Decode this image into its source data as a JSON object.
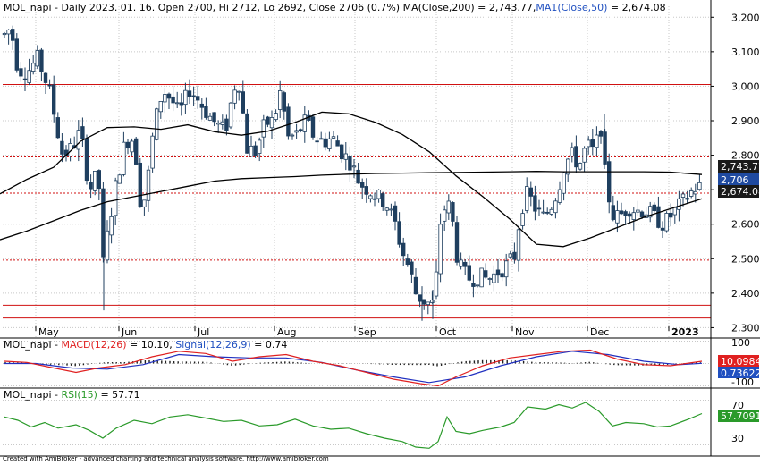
{
  "colors": {
    "candle_body": "#1f3f5f",
    "ma200": "#000000",
    "ma50": "#000000",
    "resistance": "#d01010",
    "macd_line": "#e02020",
    "signal_line": "#2030c0",
    "hist": "#202020",
    "rsi": "#2a9a2a",
    "grid": "#c8c8c8",
    "tag_close": "#1f4aa0",
    "tag_ma": "#1a1a1a",
    "tag_macd": "#e02020",
    "tag_signal": "#2050c0",
    "tag_rsi": "#2a9a2a"
  },
  "chart_data": [
    {
      "type": "candlestick",
      "title": "MOL_napi - Daily 2023. 01. 16. Open 2700, Hi 2712, Lo 2692, Close 2706 (0.7%) MA(Close,200) = 2,743.77, MA1(Close,50) = 2,674.08",
      "title_parts": {
        "a": "MOL_napi - Daily 2023. 01. 16. Open 2700, Hi 2712, Lo 2692, Close 2706 (0.7%) ",
        "b": "MA(Close,200) = 2,743.77,",
        "c": "MA1(Close,50)",
        "d": " = 2,674.08"
      },
      "ylim": [
        2270,
        3250
      ],
      "y_ticks": [
        "3,200",
        "3,100",
        "3,000",
        "2,900",
        "2,800",
        "2,700",
        "2,600",
        "2,500",
        "2,400",
        "2,300"
      ],
      "x_ticks": [
        "May",
        "Jun",
        "Jul",
        "Aug",
        "Sep",
        "Oct",
        "Nov",
        "Dec",
        "2023"
      ],
      "grid": true,
      "horizontal_levels_solid": [
        3005,
        2365,
        2328
      ],
      "horizontal_levels_dotted": [
        2795,
        2690,
        2496
      ],
      "last_values": {
        "ma200": "2,743.77",
        "close": "2,706",
        "ma50": "2,674.08"
      },
      "ma200_path": [
        [
          0,
          2555
        ],
        [
          30,
          2580
        ],
        [
          60,
          2610
        ],
        [
          90,
          2640
        ],
        [
          120,
          2665
        ],
        [
          150,
          2680
        ],
        [
          180,
          2695
        ],
        [
          210,
          2710
        ],
        [
          240,
          2725
        ],
        [
          270,
          2732
        ],
        [
          300,
          2735
        ],
        [
          330,
          2738
        ],
        [
          360,
          2742
        ],
        [
          390,
          2745
        ],
        [
          420,
          2747
        ],
        [
          450,
          2748
        ],
        [
          480,
          2749
        ],
        [
          510,
          2750
        ],
        [
          540,
          2751
        ],
        [
          570,
          2752
        ],
        [
          600,
          2753
        ],
        [
          630,
          2752
        ],
        [
          660,
          2752
        ],
        [
          690,
          2752
        ],
        [
          720,
          2752
        ],
        [
          750,
          2751
        ],
        [
          785,
          2744
        ]
      ],
      "ma50_path": [
        [
          0,
          2688
        ],
        [
          30,
          2730
        ],
        [
          60,
          2765
        ],
        [
          90,
          2840
        ],
        [
          120,
          2880
        ],
        [
          150,
          2882
        ],
        [
          180,
          2875
        ],
        [
          210,
          2888
        ],
        [
          240,
          2868
        ],
        [
          270,
          2858
        ],
        [
          300,
          2870
        ],
        [
          330,
          2895
        ],
        [
          360,
          2925
        ],
        [
          390,
          2920
        ],
        [
          420,
          2895
        ],
        [
          450,
          2860
        ],
        [
          480,
          2810
        ],
        [
          510,
          2740
        ],
        [
          540,
          2680
        ],
        [
          570,
          2615
        ],
        [
          600,
          2542
        ],
        [
          630,
          2535
        ],
        [
          660,
          2560
        ],
        [
          690,
          2590
        ],
        [
          720,
          2620
        ],
        [
          750,
          2645
        ],
        [
          785,
          2674
        ]
      ]
    },
    {
      "type": "line",
      "title": "MOL_napi - MACD(12,26) = 10.10, Signal(12,26,9) = 0.74",
      "title_parts": {
        "a": "MOL_napi - ",
        "b": "MACD(12,26)",
        "c": " = 10.10, ",
        "d": "Signal(12,26,9)",
        "e": " = 0.74"
      },
      "ylim": [
        -110,
        110
      ],
      "y_ticks": [
        "100",
        "-100"
      ],
      "last_values": {
        "macd": "10.0984",
        "signal": "0.736224"
      },
      "macd": [
        [
          5,
          10
        ],
        [
          30,
          5
        ],
        [
          60,
          -20
        ],
        [
          85,
          -40
        ],
        [
          110,
          -20
        ],
        [
          140,
          -5
        ],
        [
          170,
          30
        ],
        [
          200,
          55
        ],
        [
          230,
          45
        ],
        [
          260,
          10
        ],
        [
          290,
          30
        ],
        [
          320,
          40
        ],
        [
          350,
          10
        ],
        [
          380,
          -10
        ],
        [
          410,
          -40
        ],
        [
          440,
          -70
        ],
        [
          470,
          -90
        ],
        [
          490,
          -100
        ],
        [
          510,
          -60
        ],
        [
          540,
          -10
        ],
        [
          570,
          25
        ],
        [
          600,
          40
        ],
        [
          630,
          55
        ],
        [
          660,
          60
        ],
        [
          690,
          20
        ],
        [
          720,
          -5
        ],
        [
          750,
          -10
        ],
        [
          785,
          10
        ]
      ],
      "signal": [
        [
          5,
          0
        ],
        [
          40,
          0
        ],
        [
          80,
          -20
        ],
        [
          120,
          -25
        ],
        [
          160,
          -5
        ],
        [
          200,
          40
        ],
        [
          240,
          30
        ],
        [
          280,
          25
        ],
        [
          320,
          25
        ],
        [
          360,
          5
        ],
        [
          400,
          -30
        ],
        [
          440,
          -60
        ],
        [
          480,
          -85
        ],
        [
          520,
          -60
        ],
        [
          560,
          -10
        ],
        [
          600,
          30
        ],
        [
          640,
          55
        ],
        [
          680,
          40
        ],
        [
          720,
          10
        ],
        [
          760,
          -5
        ],
        [
          785,
          1
        ]
      ]
    },
    {
      "type": "line",
      "title": "MOL_napi - RSI(15) = 57.71",
      "title_parts": {
        "a": "MOL_napi - ",
        "b": "RSI(15)",
        "c": " = 57.71"
      },
      "ylim": [
        20,
        80
      ],
      "y_ticks": [
        "70",
        "30"
      ],
      "last_value": "57.7091",
      "rsi": [
        [
          5,
          55
        ],
        [
          20,
          52
        ],
        [
          35,
          46
        ],
        [
          50,
          50
        ],
        [
          65,
          45
        ],
        [
          85,
          48
        ],
        [
          100,
          43
        ],
        [
          115,
          36
        ],
        [
          130,
          45
        ],
        [
          150,
          52
        ],
        [
          170,
          49
        ],
        [
          190,
          55
        ],
        [
          210,
          57
        ],
        [
          230,
          54
        ],
        [
          250,
          51
        ],
        [
          270,
          52
        ],
        [
          290,
          47
        ],
        [
          310,
          48
        ],
        [
          330,
          53
        ],
        [
          350,
          47
        ],
        [
          370,
          44
        ],
        [
          390,
          45
        ],
        [
          410,
          40
        ],
        [
          430,
          36
        ],
        [
          450,
          33
        ],
        [
          465,
          28
        ],
        [
          480,
          27
        ],
        [
          490,
          33
        ],
        [
          500,
          55
        ],
        [
          510,
          42
        ],
        [
          525,
          40
        ],
        [
          540,
          43
        ],
        [
          560,
          46
        ],
        [
          575,
          50
        ],
        [
          590,
          64
        ],
        [
          610,
          62
        ],
        [
          625,
          66
        ],
        [
          640,
          63
        ],
        [
          655,
          68
        ],
        [
          670,
          60
        ],
        [
          685,
          47
        ],
        [
          700,
          50
        ],
        [
          720,
          49
        ],
        [
          735,
          46
        ],
        [
          750,
          47
        ],
        [
          770,
          53
        ],
        [
          785,
          58
        ]
      ]
    }
  ],
  "credit": "Created with AmiBroker - advanced charting and technical analysis software. http://www.amibroker.com"
}
